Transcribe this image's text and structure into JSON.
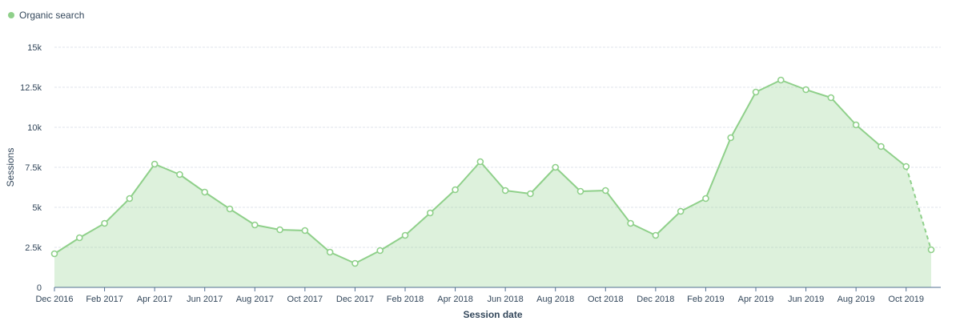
{
  "chart_data": {
    "type": "area",
    "series": [
      {
        "name": "Organic search",
        "color": "#8fd08a",
        "values": [
          2100,
          3100,
          4000,
          5550,
          7700,
          7050,
          5950,
          4900,
          3900,
          3600,
          3550,
          2200,
          1500,
          2300,
          3250,
          4650,
          6100,
          7850,
          6050,
          5850,
          7500,
          6000,
          6050,
          4000,
          3250,
          4750,
          5550,
          9350,
          12200,
          12950,
          12350,
          11850,
          10150,
          8800,
          7550,
          2350
        ],
        "partial_last": true
      }
    ],
    "x_start": "2016-12",
    "x_tick_labels": [
      "Dec 2016",
      "Feb 2017",
      "Apr 2017",
      "Jun 2017",
      "Aug 2017",
      "Oct 2017",
      "Dec 2017",
      "Feb 2018",
      "Apr 2018",
      "Jun 2018",
      "Aug 2018",
      "Oct 2018",
      "Dec 2018",
      "Feb 2019",
      "Apr 2019",
      "Jun 2019",
      "Aug 2019",
      "Oct 2019"
    ],
    "x_tick_every": 2,
    "y_ticks": [
      0,
      2500,
      5000,
      7500,
      10000,
      12500,
      15000
    ],
    "y_tick_labels": [
      "0",
      "2.5k",
      "5k",
      "7.5k",
      "10k",
      "12.5k",
      "15k"
    ],
    "ylim": [
      0,
      15000
    ],
    "xlabel": "Session date",
    "ylabel": "Sessions",
    "grid": true,
    "legend_position": "top-left"
  }
}
